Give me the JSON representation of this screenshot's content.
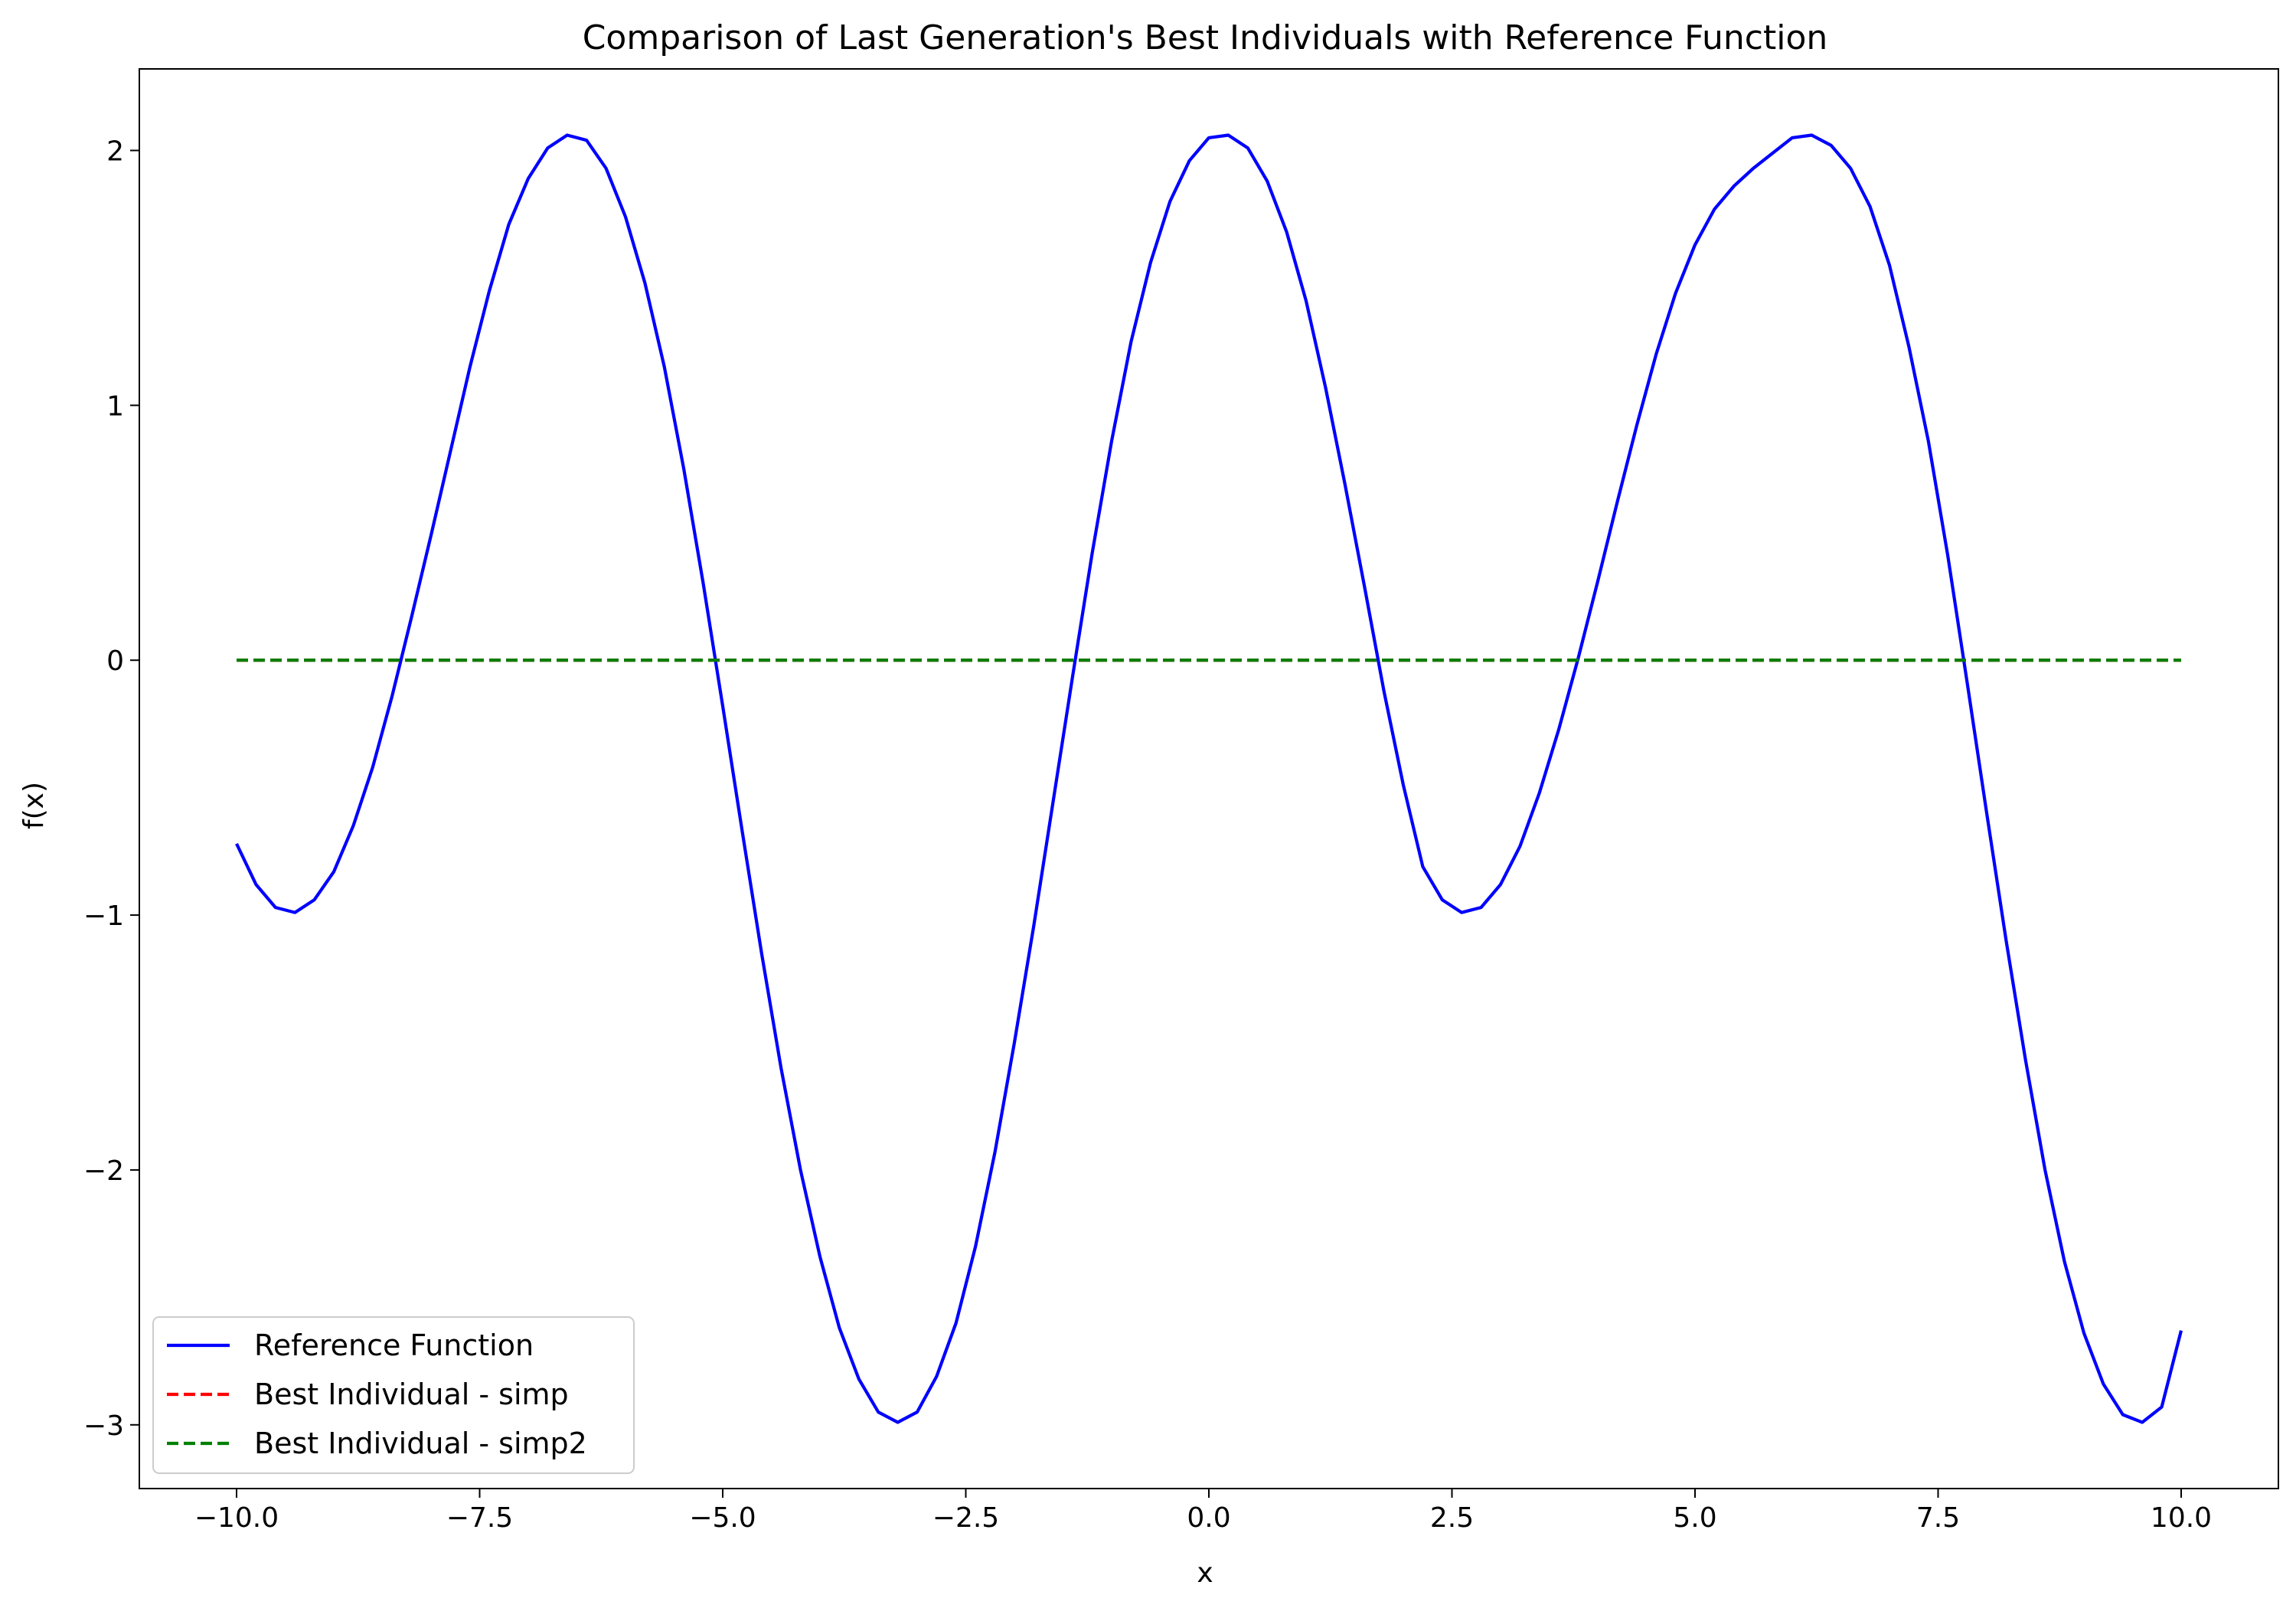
{
  "chart_data": {
    "type": "line",
    "title": "Comparison of Last Generation's Best Individuals with Reference Function",
    "xlabel": "x",
    "ylabel": "f(x)",
    "xlim": [
      -11.0,
      11.0
    ],
    "ylim": [
      -3.25,
      2.32
    ],
    "xticks": [
      -10.0,
      -7.5,
      -5.0,
      -2.5,
      0.0,
      2.5,
      5.0,
      7.5,
      10.0
    ],
    "xtick_labels": [
      "−10.0",
      "−7.5",
      "−5.0",
      "−2.5",
      "0.0",
      "2.5",
      "5.0",
      "7.5",
      "10.0"
    ],
    "yticks": [
      -3,
      -2,
      -1,
      0,
      1,
      2
    ],
    "ytick_labels": [
      "−3",
      "−2",
      "−1",
      "0",
      "1",
      "2"
    ],
    "grid": false,
    "legend_position": "lower-left",
    "series": [
      {
        "name": "Reference Function",
        "color": "#0000ff",
        "style": "solid",
        "x": [
          -10.0,
          -9.8,
          -9.6,
          -9.4,
          -9.2,
          -9.0,
          -8.8,
          -8.6,
          -8.4,
          -8.2,
          -8.0,
          -7.8,
          -7.6,
          -7.4,
          -7.2,
          -7.0,
          -6.8,
          -6.6,
          -6.4,
          -6.2,
          -6.0,
          -5.8,
          -5.6,
          -5.4,
          -5.2,
          -5.0,
          -4.8,
          -4.6,
          -4.4,
          -4.2,
          -4.0,
          -3.8,
          -3.6,
          -3.4,
          -3.2,
          -3.0,
          -2.8,
          -2.6,
          -2.4,
          -2.2,
          -2.0,
          -1.8,
          -1.6,
          -1.4,
          -1.2,
          -1.0,
          -0.8,
          -0.6,
          -0.4,
          -0.2,
          0.0,
          0.2,
          0.4,
          0.6,
          0.8,
          1.0,
          1.2,
          1.4,
          1.6,
          1.8,
          2.0,
          2.2,
          2.4,
          2.6,
          2.8,
          3.0,
          3.2,
          3.4,
          3.6,
          3.8,
          4.0,
          4.2,
          4.4,
          4.6,
          4.8,
          5.0,
          5.2,
          5.4,
          5.6,
          5.8,
          6.0,
          6.2,
          6.4,
          6.6,
          6.8,
          7.0,
          7.2,
          7.4,
          7.6,
          7.8,
          8.0,
          8.2,
          8.4,
          8.6,
          8.8,
          9.0,
          9.2,
          9.4,
          9.6,
          9.8,
          10.0
        ],
        "y": [
          -0.72,
          -0.88,
          -0.97,
          -0.99,
          -0.94,
          -0.83,
          -0.65,
          -0.42,
          -0.14,
          0.17,
          0.49,
          0.82,
          1.15,
          1.45,
          1.71,
          1.89,
          2.01,
          2.06,
          2.04,
          1.93,
          1.74,
          1.48,
          1.15,
          0.75,
          0.3,
          -0.18,
          -0.67,
          -1.15,
          -1.6,
          -2.0,
          -2.34,
          -2.62,
          -2.82,
          -2.95,
          -2.99,
          -2.95,
          -2.81,
          -2.6,
          -2.3,
          -1.93,
          -1.5,
          -1.04,
          -0.55,
          -0.06,
          0.42,
          0.86,
          1.25,
          1.56,
          1.8,
          1.96,
          2.05,
          2.06,
          2.01,
          1.88,
          1.68,
          1.41,
          1.07,
          0.69,
          0.29,
          -0.12,
          -0.49,
          -0.81,
          -0.94,
          -0.99,
          -0.97,
          -0.88,
          -0.73,
          -0.52,
          -0.27,
          0.01,
          0.31,
          0.62,
          0.92,
          1.2,
          1.44,
          1.63,
          1.77,
          1.86,
          1.93,
          1.99,
          2.05,
          2.06,
          2.02,
          1.93,
          1.78,
          1.55,
          1.23,
          0.86,
          0.41,
          -0.09,
          -0.6,
          -1.1,
          -1.57,
          -2.0,
          -2.36,
          -2.64,
          -2.84,
          -2.96,
          -2.99,
          -2.93,
          -2.63
        ]
      },
      {
        "name": "Best Individual - simp",
        "color": "#ff0000",
        "style": "dashed",
        "x": [
          -10.0,
          10.0
        ],
        "y": [
          0.0,
          0.0
        ]
      },
      {
        "name": "Best Individual - simp2",
        "color": "#008000",
        "style": "dashed",
        "x": [
          -10.0,
          10.0
        ],
        "y": [
          0.0,
          0.0
        ]
      }
    ]
  }
}
